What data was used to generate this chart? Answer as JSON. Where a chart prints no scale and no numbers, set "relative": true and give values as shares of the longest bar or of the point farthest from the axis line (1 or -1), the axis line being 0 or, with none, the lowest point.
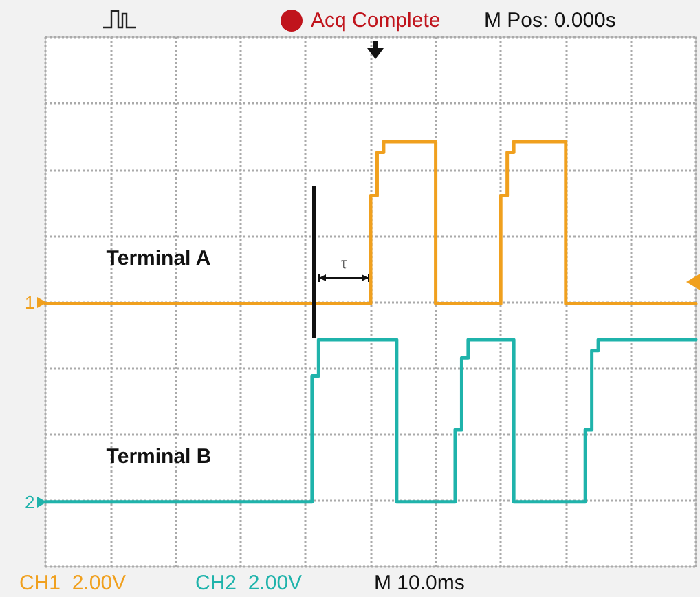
{
  "chart_data": {
    "type": "step",
    "relative": true,
    "categories": [
      null,
      null,
      null,
      null,
      null,
      null,
      null,
      null,
      null,
      null,
      null,
      null,
      null,
      null,
      null,
      null,
      null,
      null,
      null,
      null,
      null,
      null,
      null,
      null,
      null,
      null,
      null,
      null,
      null,
      null,
      null,
      null,
      null,
      null,
      null,
      null,
      null,
      null,
      null,
      null,
      null,
      null,
      null,
      null,
      null,
      null,
      null,
      null,
      null,
      null,
      null,
      null,
      null,
      null,
      null,
      null,
      null,
      null,
      null,
      null,
      null,
      null,
      null,
      null,
      null,
      null,
      null,
      null,
      null,
      null,
      null,
      null,
      null,
      null,
      null,
      null,
      null,
      null,
      null,
      null,
      null,
      null,
      null,
      null,
      null,
      null,
      null,
      null,
      null,
      null,
      null,
      null,
      null,
      null,
      null,
      null,
      null,
      null,
      null,
      null,
      null
    ],
    "series": [
      {
        "name": "Terminal A",
        "color": "#f0a01e",
        "values": [
          0.55,
          0.55,
          0.55,
          0.55,
          0.55,
          0.55,
          0.55,
          0.55,
          0.55,
          0.55,
          0.55,
          0.55,
          0.55,
          0.55,
          0.55,
          0.55,
          0.55,
          0.55,
          0.55,
          0.55,
          0.55,
          0.55,
          0.55,
          0.55,
          0.55,
          0.55,
          0.55,
          0.55,
          0.55,
          0.55,
          0.55,
          0.55,
          0.55,
          0.55,
          0.55,
          0.55,
          0.55,
          0.55,
          0.55,
          0.55,
          0.55,
          0.55,
          0.55,
          0.55,
          0.55,
          0.55,
          0.55,
          0.55,
          0.55,
          0.55,
          0.85,
          0.97,
          1,
          1,
          1,
          1,
          1,
          1,
          1,
          1,
          0.55,
          0.55,
          0.55,
          0.55,
          0.55,
          0.55,
          0.55,
          0.55,
          0.55,
          0.55,
          0.85,
          0.97,
          1,
          1,
          1,
          1,
          1,
          1,
          1,
          1,
          0.55,
          0.55,
          0.55,
          0.55,
          0.55,
          0.55,
          0.55,
          0.55,
          0.55,
          0.55,
          0.55,
          0.55,
          0.55,
          0.55,
          0.55,
          0.55,
          0.55,
          0.55,
          0.55,
          0.55,
          0.55
        ]
      },
      {
        "name": "Terminal B",
        "color": "#1fb3ab",
        "values": [
          0,
          0,
          0,
          0,
          0,
          0,
          0,
          0,
          0,
          0,
          0,
          0,
          0,
          0,
          0,
          0,
          0,
          0,
          0,
          0,
          0,
          0,
          0,
          0,
          0,
          0,
          0,
          0,
          0,
          0,
          0,
          0,
          0,
          0,
          0,
          0,
          0,
          0,
          0,
          0,
          0,
          0.35,
          0.45,
          0.45,
          0.45,
          0.45,
          0.45,
          0.45,
          0.45,
          0.45,
          0.45,
          0.45,
          0.45,
          0.45,
          0,
          0,
          0,
          0,
          0,
          0,
          0,
          0,
          0,
          0.2,
          0.4,
          0.45,
          0.45,
          0.45,
          0.45,
          0.45,
          0.45,
          0.45,
          0,
          0,
          0,
          0,
          0,
          0,
          0,
          0,
          0,
          0,
          0,
          0.2,
          0.42,
          0.45,
          0.45,
          0.45,
          0.45,
          0.45,
          0.45,
          0.45,
          0.45,
          0.45,
          0.45,
          0.45,
          0.45,
          0.45,
          0.45,
          0.45,
          0.45
        ]
      }
    ],
    "annotations": [
      "Acq Complete",
      "M Pos: 0.000s",
      "τ",
      "1",
      "2",
      "CH1  2.00V",
      "CH2  2.00V",
      "M 10.0ms"
    ],
    "grid": true,
    "legend": false,
    "marker": "none",
    "line_style": "solid"
  }
}
